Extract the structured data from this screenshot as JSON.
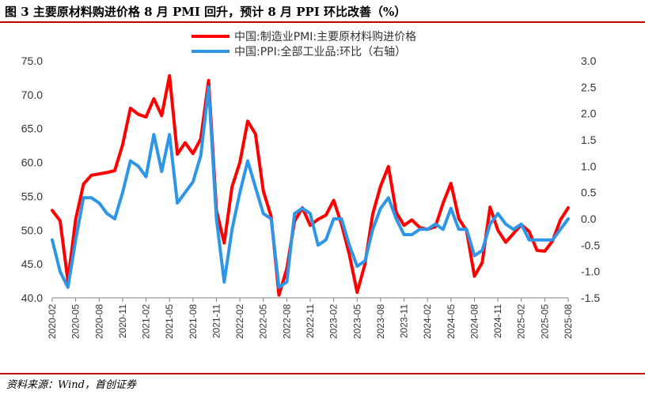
{
  "header": {
    "title": "图 3 主要原材料购进价格 8 月 PMI 回升，预计 8 月 PPI 环比改善（%）"
  },
  "footer": {
    "source": "资料来源：Wind，首创证券"
  },
  "colors": {
    "accent_rule": "#c00000",
    "series_pmi": "#ff0000",
    "series_ppi": "#2e96e6"
  },
  "chart_data": {
    "type": "line",
    "x": [
      "2020-02",
      "2020-03",
      "2020-04",
      "2020-05",
      "2020-06",
      "2020-07",
      "2020-08",
      "2020-09",
      "2020-10",
      "2020-11",
      "2020-12",
      "2021-01",
      "2021-02",
      "2021-03",
      "2021-04",
      "2021-05",
      "2021-06",
      "2021-07",
      "2021-08",
      "2021-09",
      "2021-10",
      "2021-11",
      "2021-12",
      "2022-01",
      "2022-02",
      "2022-03",
      "2022-04",
      "2022-05",
      "2022-06",
      "2022-07",
      "2022-08",
      "2022-09",
      "2022-10",
      "2022-11",
      "2022-12",
      "2023-01",
      "2023-02",
      "2023-03",
      "2023-04",
      "2023-05",
      "2023-06",
      "2023-07",
      "2023-08",
      "2023-09",
      "2023-10",
      "2023-11",
      "2023-12",
      "2024-01",
      "2024-02",
      "2024-03",
      "2024-04",
      "2024-05",
      "2024-06",
      "2024-07",
      "2024-08",
      "2024-09",
      "2024-10",
      "2024-11",
      "2024-12",
      "2025-01",
      "2025-02",
      "2025-03",
      "2025-04",
      "2025-05",
      "2025-06",
      "2025-07",
      "2025-08"
    ],
    "xtick_labels": [
      "2020-02",
      "2020-05",
      "2020-08",
      "2020-11",
      "2021-02",
      "2021-05",
      "2021-08",
      "2021-11",
      "2022-02",
      "2022-05",
      "2022-08",
      "2022-11",
      "2023-02",
      "2023-05",
      "2023-08",
      "2023-11",
      "2024-02",
      "2024-05",
      "2024-08",
      "2024-11",
      "2025-02",
      "2025-05",
      "2025-08"
    ],
    "series": [
      {
        "name": "中国:制造业PMI:主要原材料购进价格",
        "axis": "left",
        "color": "#ff0000",
        "values": [
          52.9,
          51.4,
          42.5,
          51.6,
          56.8,
          58.1,
          58.3,
          58.5,
          58.8,
          62.6,
          68.0,
          67.1,
          66.7,
          69.4,
          66.9,
          72.8,
          61.2,
          62.9,
          61.3,
          63.5,
          72.1,
          52.9,
          48.1,
          56.4,
          60.0,
          66.1,
          64.2,
          55.8,
          52.0,
          40.4,
          44.3,
          51.3,
          53.3,
          50.7,
          51.6,
          52.2,
          54.4,
          50.9,
          46.4,
          40.8,
          45.0,
          52.4,
          56.5,
          59.4,
          52.6,
          50.7,
          51.5,
          50.4,
          50.1,
          50.5,
          54.0,
          56.9,
          51.7,
          49.9,
          43.2,
          45.2,
          53.4,
          50.0,
          48.2,
          49.5,
          50.8,
          49.8,
          47.0,
          46.9,
          48.4,
          51.5,
          53.3
        ]
      },
      {
        "name": "中国:PPI:全部工业品:环比（右轴）",
        "axis": "right",
        "color": "#2e96e6",
        "values": [
          -0.4,
          -1.0,
          -1.3,
          -0.4,
          0.4,
          0.4,
          0.3,
          0.1,
          0.0,
          0.5,
          1.1,
          1.0,
          0.8,
          1.6,
          0.9,
          1.6,
          0.3,
          0.5,
          0.7,
          1.2,
          2.5,
          0.0,
          -1.2,
          -0.2,
          0.5,
          1.1,
          0.6,
          0.1,
          0.0,
          -1.3,
          -1.2,
          0.1,
          0.2,
          0.1,
          -0.5,
          -0.4,
          0.0,
          0.0,
          -0.5,
          -0.9,
          -0.8,
          -0.2,
          0.2,
          0.4,
          0.0,
          -0.3,
          -0.3,
          -0.2,
          -0.2,
          -0.1,
          -0.2,
          0.2,
          -0.2,
          -0.2,
          -0.7,
          -0.6,
          -0.1,
          0.1,
          -0.1,
          -0.2,
          -0.1,
          -0.4,
          -0.4,
          -0.4,
          -0.4,
          -0.2,
          0.0
        ]
      }
    ],
    "ylim_left": [
      40,
      75
    ],
    "yticks_left": [
      "40.0",
      "45.0",
      "50.0",
      "55.0",
      "60.0",
      "65.0",
      "70.0",
      "75.0"
    ],
    "ylim_right": [
      -1.5,
      3.0
    ],
    "yticks_right": [
      "-1.5",
      "-1.0",
      "-0.5",
      "0.0",
      "0.5",
      "1.0",
      "1.5",
      "2.0",
      "2.5",
      "3.0"
    ],
    "grid": false,
    "legend": "top-center"
  }
}
